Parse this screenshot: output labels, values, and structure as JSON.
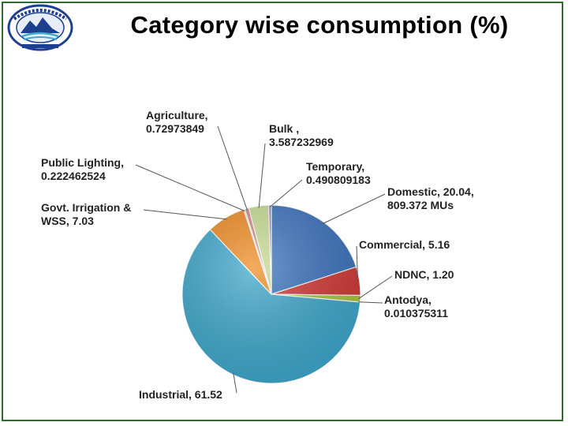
{
  "page": {
    "title": "Category wise consumption (%)"
  },
  "logo": {
    "name": "seal-logo"
  },
  "chart_data": {
    "type": "pie",
    "title": "Category wise consumption (%)",
    "slices": [
      {
        "label": "Domestic",
        "value": 20.04,
        "text_lines": [
          "Domestic, 20.04,",
          "809.372 MUs"
        ],
        "color": "#3d75bf"
      },
      {
        "label": "Commercial",
        "value": 5.16,
        "text_lines": [
          "Commercial, 5.16"
        ],
        "color": "#d23a36"
      },
      {
        "label": "NDNC",
        "value": 1.2,
        "text_lines": [
          "NDNC, 1.20"
        ],
        "color": "#a8c83e"
      },
      {
        "label": "Antodya",
        "value": 0.010375311,
        "text_lines": [
          "Antodya,",
          "0.010375311"
        ],
        "color": "#7a59a6"
      },
      {
        "label": "Industrial",
        "value": 61.52,
        "text_lines": [
          "Industrial, 61.52"
        ],
        "color": "#3ea8cc"
      },
      {
        "label": "Govt. Irrigation & WSS",
        "value": 7.03,
        "text_lines": [
          "Govt. Irrigation &",
          "WSS, 7.03"
        ],
        "color": "#f08c22"
      },
      {
        "label": "Public Lighting",
        "value": 0.222462524,
        "text_lines": [
          "Public Lighting,",
          "0.222462524"
        ],
        "color": "#8fa6d4"
      },
      {
        "label": "Agriculture",
        "value": 0.72973849,
        "text_lines": [
          "Agriculture,",
          "0.72973849"
        ],
        "color": "#d88a86"
      },
      {
        "label": "Bulk",
        "value": 3.587232969,
        "text_lines": [
          "Bulk ,",
          "3.587232969"
        ],
        "color": "#c9dd94"
      },
      {
        "label": "Temporary",
        "value": 0.490809183,
        "text_lines": [
          "Temporary,",
          "0.490809183"
        ],
        "color": "#9b86bd"
      }
    ]
  }
}
